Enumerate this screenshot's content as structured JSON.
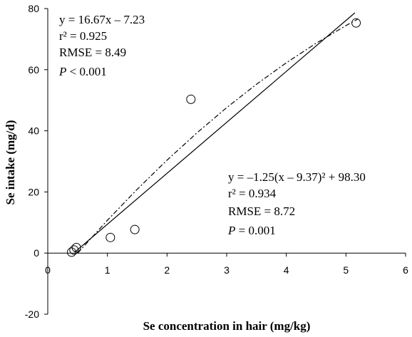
{
  "chart_data": {
    "type": "scatter",
    "x_label": "Se concentration in hair (mg/kg)",
    "y_label": "Se intake (mg/d)",
    "xlim": [
      0,
      6
    ],
    "xticks": [
      0,
      1,
      2,
      3,
      4,
      5,
      6
    ],
    "ylim": [
      -20,
      80
    ],
    "yticks": [
      -20,
      0,
      20,
      40,
      60,
      80
    ],
    "series": [
      {
        "mode": "markers",
        "color": "#000000",
        "x": [
          0.4,
          0.44,
          0.48,
          1.05,
          1.46,
          2.4,
          5.17
        ],
        "values": [
          0.3,
          1.0,
          1.8,
          5.1,
          7.7,
          50.3,
          75.3
        ]
      },
      {
        "mode": "line",
        "dash": "solid",
        "color": "#000000",
        "x": [
          0.45,
          5.15
        ],
        "values": [
          0.27,
          78.6
        ]
      },
      {
        "mode": "line",
        "dash": "dashdot",
        "color": "#000000",
        "x": [
          0.5,
          1,
          1.5,
          2,
          2.5,
          3,
          3.5,
          4,
          4.5,
          5,
          5.2
        ],
        "values": [
          -0.05,
          10.73,
          20.88,
          30.4,
          39.3,
          47.58,
          55.23,
          62.25,
          68.65,
          74.43,
          76.56
        ]
      }
    ],
    "annotations": [
      {
        "lines": [
          {
            "text": "y = 16.67x – 7.23"
          },
          {
            "text": "r² = 0.925"
          },
          {
            "text": "RMSE = 8.49"
          },
          {
            "italic": "P",
            "text": " < 0.001"
          }
        ]
      },
      {
        "lines": [
          {
            "text": "y = –1.25(x – 9.37)² + 98.30"
          },
          {
            "text": "r² = 0.934"
          },
          {
            "text": "RMSE = 8.72"
          },
          {
            "italic": "P",
            "text": " = 0.001"
          }
        ]
      }
    ]
  }
}
